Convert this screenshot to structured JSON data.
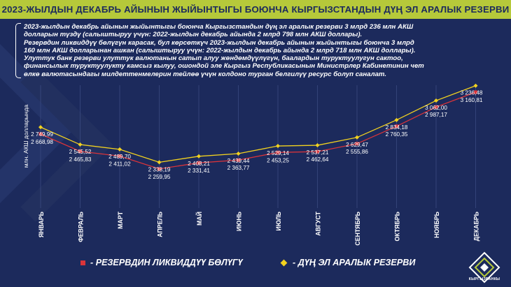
{
  "title": "2023-ЖЫЛДЫН ДЕКАБРЬ АЙЫНЫН ЖЫЙЫНТЫГЫ БОЮНЧА КЫРГЫЗСТАНДЫН ДҮҢ ЭЛ АРАЛЫК РЕЗЕРВИ",
  "note_lines": [
    "2023-жылдын декабрь айынын жыйынтыгы боюнча Кыргызстандын дүң эл аралык резерви 3 млрд 236 млн АКШ",
    "долларын түздү (салыштыруу үчүн: 2022-жылдын декабрь айында 2 млрд 798 млн  АКШ доллары).",
    "Резервдин ликвиддүү бөлүгүн карасак, бул көрсөткүч 2023-жылдын декабрь айынын жыйынтыгы боюнча 3 млрд",
    "160 млн АКШ долларынан ашкан (салыштыруу үчүн: 2022-жылдын декабрь айында 2 млрд 718 млн  АКШ доллары).",
    "Улуттук банк резерви улуттук валютанын сатып алуу жөндөмдүүлүгүн, баалардын туруктуулугун сактоо,",
    "финансылык туруктуулукту камсыз кылуу, ошондой эле Кыргыз Республикасынын Министрлер Кабинетинин чет",
    "өлкө валютасындагы милдеттенмелерин тейлөө үчүн колдоно турган белгилүү ресурс болуп саналат."
  ],
  "logo_text": "КЫРГЫЗБАНКЫ",
  "colors": {
    "background": "#1c2a5c",
    "title_bar": "#b6c93a",
    "liquid_series": "#d9343a",
    "gross_series": "#f2d21f"
  },
  "chart_data": {
    "type": "line",
    "ylabel": "млн. АКШ долларында",
    "xlabel": "",
    "categories": [
      "ЯНВАРЬ",
      "ФЕВРАЛЬ",
      "МАРТ",
      "АПРЕЛЬ",
      "МАЙ",
      "ИЮНЬ",
      "ИЮЛЬ",
      "АВГУСТ",
      "СЕНТЯБРЬ",
      "ОКТЯБРЬ",
      "НОЯБРЬ",
      "ДЕКАБРЬ"
    ],
    "ylim": [
      1800,
      3300
    ],
    "grid": "vertical",
    "legend_position": "bottom",
    "series": [
      {
        "name": "- ДҮҢ ЭЛ АРАЛЫК РЕЗЕРВИ",
        "marker": "diamond",
        "values": [
          2749.99,
          2545.52,
          2489.7,
          2338.19,
          2408.21,
          2439.44,
          2529.14,
          2537.21,
          2629.47,
          2834.18,
          3062.0,
          3236.48
        ],
        "labels": [
          "2 749,99",
          "2 545,52",
          "2 489,70",
          "2 338,19",
          "2 408,21",
          "2 439,44",
          "2 529,14",
          "2 537,21",
          "2 629,47",
          "2 834,18",
          "3 062,00",
          "3 236,48"
        ]
      },
      {
        "name": "- РЕЗЕРВДИН ЛИКВИДДҮҮ БӨЛҮГҮ",
        "marker": "square",
        "values": [
          2668.98,
          2465.83,
          2411.02,
          2259.95,
          2331.41,
          2363.77,
          2453.25,
          2462.64,
          2555.86,
          2760.35,
          2987.17,
          3160.81
        ],
        "labels": [
          "2 668,98",
          "2 465,83",
          "2 411,02",
          "2 259,95",
          "2 331,41",
          "2 363,77",
          "2 453,25",
          "2 462,64",
          "2 555,86",
          "2 760,35",
          "2 987,17",
          "3 160,81"
        ]
      }
    ]
  }
}
